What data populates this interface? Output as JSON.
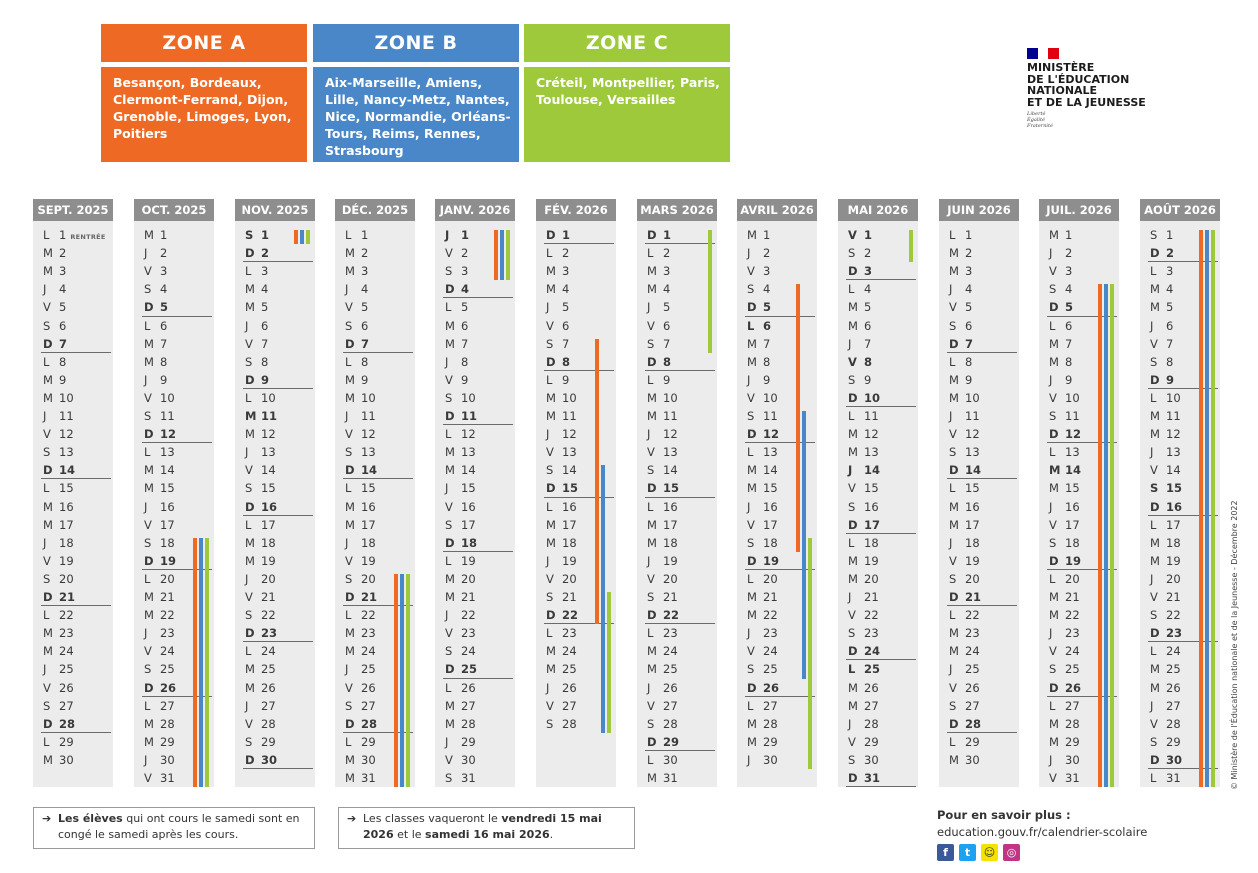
{
  "zones": [
    {
      "name": "ZONE A",
      "color": "#ee6a24",
      "cities": "Besançon, Bordeaux, Clermont-Ferrand, Dijon, Grenoble, Limoges, Lyon, Poitiers"
    },
    {
      "name": "ZONE B",
      "color": "#4a87c8",
      "cities": "Aix-Marseille, Amiens, Lille, Nancy-Metz, Nantes, Nice, Normandie, Orléans-Tours, Reims, Rennes, Strasbourg"
    },
    {
      "name": "ZONE C",
      "color": "#9dc93b",
      "cities": "Créteil, Montpellier, Paris, Toulouse, Versailles"
    }
  ],
  "ministry": {
    "name_lines": [
      "MINISTÈRE",
      "DE L'ÉDUCATION",
      "NATIONALE",
      "ET DE LA JEUNESSE"
    ],
    "motto": [
      "Liberté",
      "Égalité",
      "Fraternité"
    ],
    "flag": [
      "#000091",
      "#ffffff",
      "#e1000f"
    ]
  },
  "months": [
    {
      "name": "SEPT. 2025",
      "start": 1,
      "days": 30,
      "annotation": {
        "day": 1,
        "text": "RENTRÉE"
      },
      "off": []
    },
    {
      "name": "OCT. 2025",
      "start": 3,
      "days": 31,
      "off": []
    },
    {
      "name": "NOV. 2025",
      "start": 6,
      "days": 30,
      "off": [
        1,
        11
      ]
    },
    {
      "name": "DÉC. 2025",
      "start": 1,
      "days": 31,
      "off": []
    },
    {
      "name": "JANV. 2026",
      "start": 4,
      "days": 31,
      "off": [
        1
      ]
    },
    {
      "name": "FÉV. 2026",
      "start": 0,
      "days": 28,
      "off": []
    },
    {
      "name": "MARS 2026",
      "start": 0,
      "days": 31,
      "off": []
    },
    {
      "name": "AVRIL 2026",
      "start": 3,
      "days": 30,
      "off": [
        6
      ]
    },
    {
      "name": "MAI 2026",
      "start": 5,
      "days": 31,
      "off": [
        1,
        8,
        14,
        25
      ]
    },
    {
      "name": "JUIN 2026",
      "start": 1,
      "days": 30,
      "off": []
    },
    {
      "name": "JUIL. 2026",
      "start": 3,
      "days": 31,
      "off": [
        14
      ]
    },
    {
      "name": "AOÛT 2026",
      "start": 6,
      "days": 31,
      "off": [
        15
      ]
    }
  ],
  "day_letters": [
    "D",
    "L",
    "M",
    "M",
    "J",
    "V",
    "S"
  ],
  "holidays": [
    {
      "zone": "A",
      "segments": [
        [
          1,
          18,
          2,
          1
        ],
        [
          3,
          20,
          4,
          3
        ],
        [
          5,
          7,
          5,
          22
        ],
        [
          7,
          4,
          7,
          18
        ],
        [
          10,
          4,
          11,
          31
        ]
      ]
    },
    {
      "zone": "B",
      "segments": [
        [
          1,
          18,
          2,
          1
        ],
        [
          3,
          20,
          4,
          3
        ],
        [
          5,
          14,
          5,
          28
        ],
        [
          7,
          11,
          7,
          25
        ],
        [
          10,
          4,
          11,
          31
        ]
      ]
    },
    {
      "zone": "C",
      "segments": [
        [
          1,
          18,
          2,
          1
        ],
        [
          3,
          20,
          4,
          3
        ],
        [
          5,
          21,
          6,
          7
        ],
        [
          7,
          18,
          8,
          2
        ],
        [
          10,
          4,
          11,
          31
        ]
      ]
    }
  ],
  "notes": [
    {
      "html": "<b>Les élèves</b> qui ont cours le samedi sont en congé le samedi après les cours."
    },
    {
      "html": "Les classes vaqueront le <b>vendredi 15 mai 2026</b> et le <b>samedi 16 mai 2026</b>."
    }
  ],
  "more": {
    "title": "Pour en savoir plus :",
    "url": "education.gouv.fr/calendrier-scolaire"
  },
  "social": [
    "facebook-icon",
    "twitter-icon",
    "snapchat-icon",
    "instagram-icon"
  ],
  "copyright": "© Ministère de l'Éducation nationale et de la Jeunesse - Décembre 2022"
}
